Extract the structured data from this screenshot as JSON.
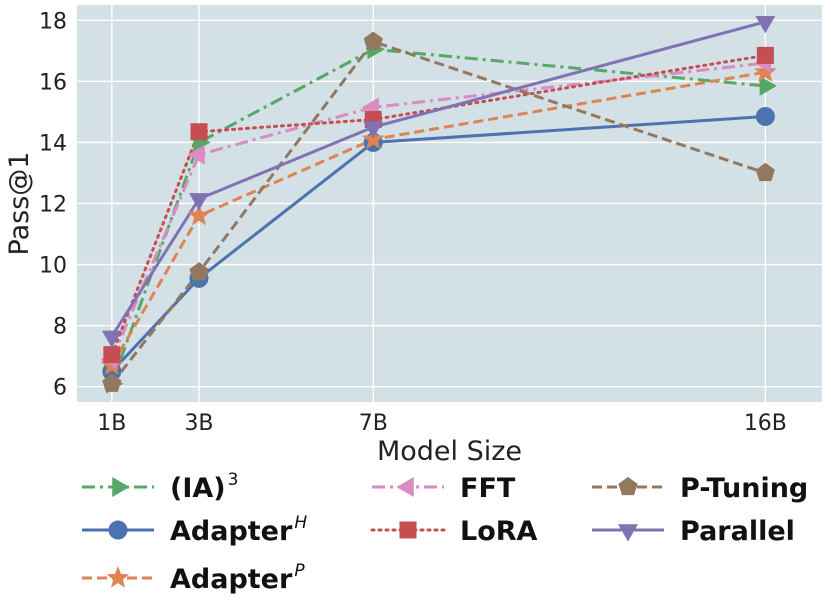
{
  "chart_data": {
    "type": "line",
    "title": "",
    "xlabel": "Model Size",
    "ylabel": "Pass@1",
    "categories": [
      "1B",
      "3B",
      "7B",
      "16B"
    ],
    "x": [
      1,
      3,
      7,
      16
    ],
    "xlim": [
      0.2,
      17.3
    ],
    "ylim": [
      5.5,
      18.5
    ],
    "yticks": [
      6,
      8,
      10,
      12,
      14,
      16,
      18
    ],
    "grid": true,
    "legend_position": "bottom",
    "background_color": "#d3e1e6",
    "series": [
      {
        "name": "(IA)",
        "sup": "3",
        "color": "#55a868",
        "dash": "dashdot",
        "marker": "triangle-right",
        "values": [
          6.1,
          14.0,
          17.05,
          15.85
        ]
      },
      {
        "name": "Adapter",
        "sup": "H",
        "color": "#4c72b0",
        "dash": "solid",
        "marker": "circle",
        "values": [
          6.5,
          9.55,
          14.0,
          14.85
        ]
      },
      {
        "name": "Adapter",
        "sup": "P",
        "color": "#dd8452",
        "dash": "dashed",
        "marker": "star",
        "values": [
          6.7,
          11.6,
          14.1,
          16.3
        ]
      },
      {
        "name": "FFT",
        "sup": "",
        "color": "#da8bc3",
        "dash": "dashdot",
        "marker": "triangle-left",
        "values": [
          6.9,
          13.6,
          15.15,
          16.6
        ]
      },
      {
        "name": "LoRA",
        "sup": "",
        "color": "#c44e52",
        "dash": "dotted",
        "marker": "square",
        "values": [
          7.05,
          14.35,
          14.75,
          16.85
        ]
      },
      {
        "name": "P-Tuning",
        "sup": "",
        "color": "#937860",
        "dash": "dashed",
        "marker": "pentagon",
        "values": [
          6.1,
          9.75,
          17.3,
          13.0
        ]
      },
      {
        "name": "Parallel",
        "sup": "",
        "color": "#8172b3",
        "dash": "solid",
        "marker": "triangle-down",
        "values": [
          7.65,
          12.15,
          14.5,
          17.95
        ]
      }
    ]
  }
}
